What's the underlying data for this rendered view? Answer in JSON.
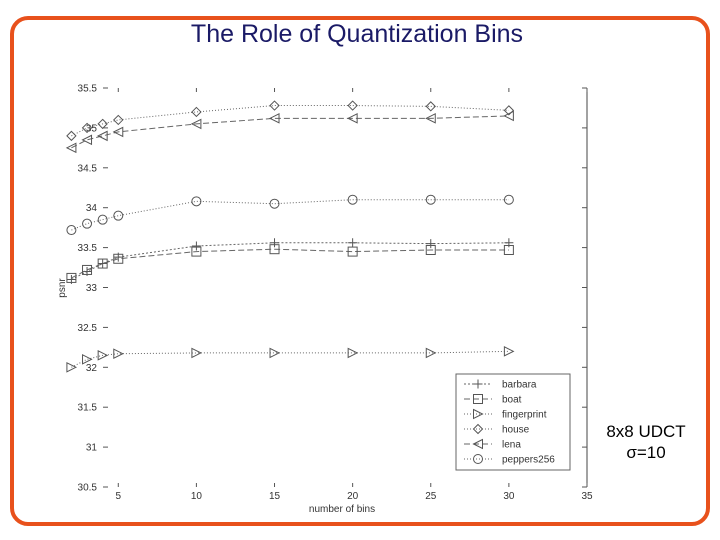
{
  "slide": {
    "title": "The Role of  Quantization Bins",
    "annotation_line1": "8x8 UDCT",
    "annotation_line2": "σ=10"
  },
  "chart_data": {
    "type": "line",
    "title": "",
    "xlabel": "number of bins",
    "ylabel": "psnr",
    "xlim": [
      0,
      35
    ],
    "ylim": [
      30.5,
      35.5
    ],
    "x_ticks": [
      5,
      10,
      15,
      20,
      25,
      30,
      35
    ],
    "y_ticks": [
      30.5,
      31,
      31.5,
      32,
      32.5,
      33,
      33.5,
      34,
      34.5,
      35,
      35.5
    ],
    "grid": false,
    "legend_position": "bottom-right",
    "series": [
      {
        "name": "barbara",
        "marker": "plus",
        "x": [
          2,
          3,
          4,
          5,
          10,
          15,
          20,
          25,
          30
        ],
        "y": [
          33.1,
          33.2,
          33.3,
          33.38,
          33.52,
          33.56,
          33.56,
          33.55,
          33.56
        ]
      },
      {
        "name": "boat",
        "marker": "square",
        "x": [
          2,
          3,
          4,
          5,
          10,
          15,
          20,
          25,
          30
        ],
        "y": [
          33.12,
          33.22,
          33.3,
          33.36,
          33.45,
          33.48,
          33.45,
          33.47,
          33.47
        ]
      },
      {
        "name": "fingerprint",
        "marker": "triangle-right",
        "x": [
          2,
          3,
          4,
          5,
          10,
          15,
          20,
          25,
          30
        ],
        "y": [
          32.0,
          32.1,
          32.15,
          32.17,
          32.18,
          32.18,
          32.18,
          32.18,
          32.2
        ]
      },
      {
        "name": "house",
        "marker": "diamond",
        "x": [
          2,
          3,
          4,
          5,
          10,
          15,
          20,
          25,
          30
        ],
        "y": [
          34.9,
          35.0,
          35.05,
          35.1,
          35.2,
          35.28,
          35.28,
          35.27,
          35.22
        ]
      },
      {
        "name": "lena",
        "marker": "triangle-left",
        "x": [
          2,
          3,
          4,
          5,
          10,
          15,
          20,
          25,
          30
        ],
        "y": [
          34.75,
          34.85,
          34.9,
          34.95,
          35.05,
          35.12,
          35.12,
          35.12,
          35.15
        ]
      },
      {
        "name": "peppers256",
        "marker": "circle",
        "x": [
          2,
          3,
          4,
          5,
          10,
          15,
          20,
          25,
          30
        ],
        "y": [
          33.72,
          33.8,
          33.85,
          33.9,
          34.08,
          34.05,
          34.1,
          34.1,
          34.1
        ]
      }
    ]
  }
}
